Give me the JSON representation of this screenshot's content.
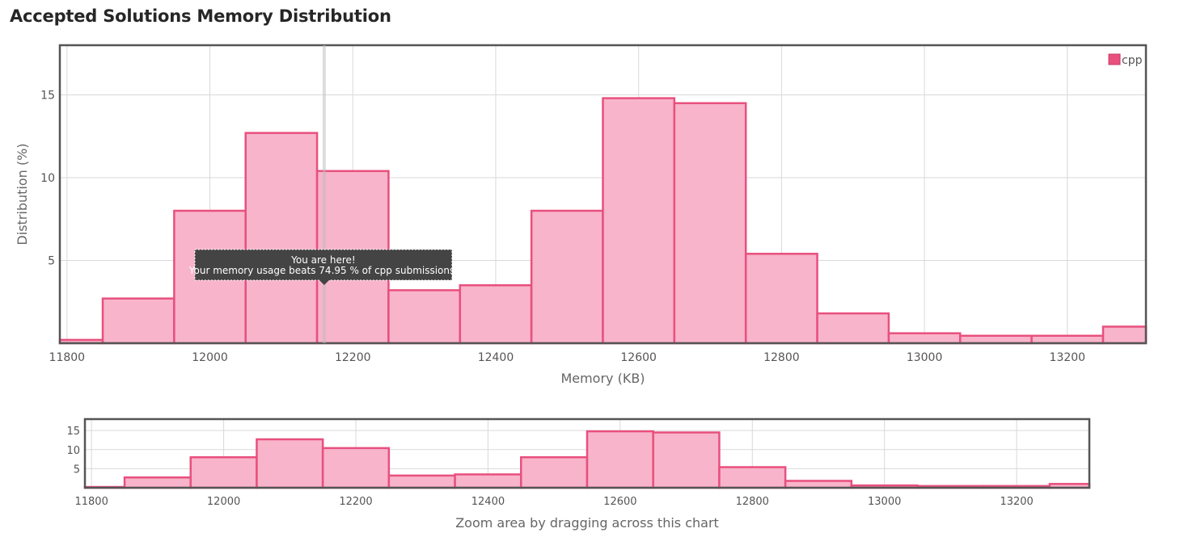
{
  "page": {
    "title": "Accepted Solutions Memory Distribution"
  },
  "colors": {
    "bar_fill": "#f8b4cb",
    "bar_stroke": "#e8507e",
    "grid": "#d9d9d9",
    "frame": "#555555",
    "tooltip_bg": "#444444",
    "tooltip_text": "#ffffff"
  },
  "tooltip": {
    "line1": "You are here!",
    "line2": "Your memory usage beats 74.95 % of cpp submissions.",
    "at_memory": 12160
  },
  "legend": {
    "label": "cpp",
    "placement": "top-right"
  },
  "chart_data": [
    {
      "type": "bar",
      "role": "main",
      "xlabel": "Memory (KB)",
      "ylabel": "Distribution (%)",
      "xlim": [
        11790,
        13310
      ],
      "ylim": [
        0,
        18
      ],
      "xticks": [
        11800,
        12000,
        12200,
        12400,
        12600,
        12800,
        13000,
        13200
      ],
      "yticks": [
        5,
        10,
        15
      ],
      "grid": true,
      "bins": [
        {
          "x0": 11790,
          "x1": 11850,
          "value": 0.2
        },
        {
          "x0": 11850,
          "x1": 11950,
          "value": 2.7
        },
        {
          "x0": 11950,
          "x1": 12050,
          "value": 8.0
        },
        {
          "x0": 12050,
          "x1": 12150,
          "value": 12.7
        },
        {
          "x0": 12150,
          "x1": 12250,
          "value": 10.4
        },
        {
          "x0": 12250,
          "x1": 12350,
          "value": 3.2
        },
        {
          "x0": 12350,
          "x1": 12450,
          "value": 3.5
        },
        {
          "x0": 12450,
          "x1": 12550,
          "value": 8.0
        },
        {
          "x0": 12550,
          "x1": 12650,
          "value": 14.8
        },
        {
          "x0": 12650,
          "x1": 12750,
          "value": 14.5
        },
        {
          "x0": 12750,
          "x1": 12850,
          "value": 5.4
        },
        {
          "x0": 12850,
          "x1": 12950,
          "value": 1.8
        },
        {
          "x0": 12950,
          "x1": 13050,
          "value": 0.6
        },
        {
          "x0": 13050,
          "x1": 13150,
          "value": 0.45
        },
        {
          "x0": 13150,
          "x1": 13250,
          "value": 0.45
        },
        {
          "x0": 13250,
          "x1": 13310,
          "value": 1.0
        }
      ]
    },
    {
      "type": "bar",
      "role": "navigator",
      "xlabel": "Zoom area by dragging across this chart",
      "xlim": [
        11790,
        13310
      ],
      "ylim": [
        0,
        18
      ],
      "xticks": [
        11800,
        12000,
        12200,
        12400,
        12600,
        12800,
        13000,
        13200
      ],
      "yticks": [
        5,
        10,
        15
      ],
      "grid": true,
      "bins": [
        {
          "x0": 11790,
          "x1": 11850,
          "value": 0.2
        },
        {
          "x0": 11850,
          "x1": 11950,
          "value": 2.7
        },
        {
          "x0": 11950,
          "x1": 12050,
          "value": 8.0
        },
        {
          "x0": 12050,
          "x1": 12150,
          "value": 12.7
        },
        {
          "x0": 12150,
          "x1": 12250,
          "value": 10.4
        },
        {
          "x0": 12250,
          "x1": 12350,
          "value": 3.2
        },
        {
          "x0": 12350,
          "x1": 12450,
          "value": 3.5
        },
        {
          "x0": 12450,
          "x1": 12550,
          "value": 8.0
        },
        {
          "x0": 12550,
          "x1": 12650,
          "value": 14.8
        },
        {
          "x0": 12650,
          "x1": 12750,
          "value": 14.5
        },
        {
          "x0": 12750,
          "x1": 12850,
          "value": 5.4
        },
        {
          "x0": 12850,
          "x1": 12950,
          "value": 1.8
        },
        {
          "x0": 12950,
          "x1": 13050,
          "value": 0.6
        },
        {
          "x0": 13050,
          "x1": 13150,
          "value": 0.45
        },
        {
          "x0": 13150,
          "x1": 13250,
          "value": 0.45
        },
        {
          "x0": 13250,
          "x1": 13310,
          "value": 1.0
        }
      ]
    }
  ]
}
